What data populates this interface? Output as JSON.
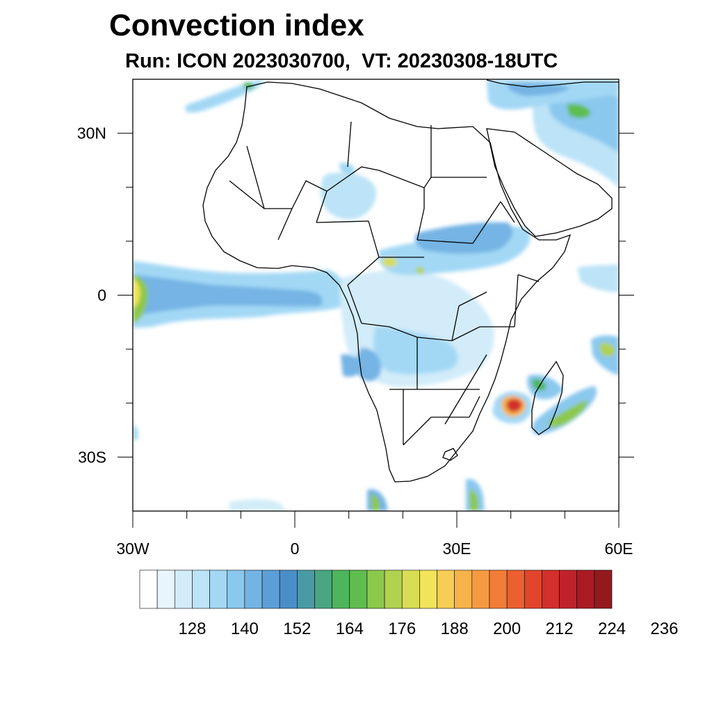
{
  "title": "Convection index",
  "subtitle": "Run: ICON 2023030700,  VT: 20230308-18UTC",
  "map": {
    "lon_range": [
      -30,
      60
    ],
    "lat_range": [
      -40,
      40
    ],
    "x_ticks": [
      {
        "value": -30,
        "label": "30W"
      },
      {
        "value": 0,
        "label": "0"
      },
      {
        "value": 30,
        "label": "30E"
      },
      {
        "value": 60,
        "label": "60E"
      }
    ],
    "y_ticks": [
      {
        "value": 30,
        "label": "30N"
      },
      {
        "value": 0,
        "label": "0"
      },
      {
        "value": -30,
        "label": "30S"
      }
    ]
  },
  "colorbar": {
    "colors": [
      "#ffffff",
      "#e9f5fc",
      "#d2ecf9",
      "#bce3f7",
      "#a3d8f5",
      "#8ac8ee",
      "#74b4e4",
      "#5c9fd6",
      "#4a8ec8",
      "#4a9aa6",
      "#49a680",
      "#4db55c",
      "#5fbd4e",
      "#8cc84b",
      "#b1d24f",
      "#d8dd54",
      "#f1e35a",
      "#f8cd55",
      "#f7b34a",
      "#f59a41",
      "#f27d37",
      "#ec5f30",
      "#e1452b",
      "#d32f2b",
      "#c0222a",
      "#aa1b24",
      "#921a1e"
    ],
    "labels": [
      "128",
      "140",
      "152",
      "164",
      "176",
      "188",
      "200",
      "212",
      "224",
      "236"
    ]
  }
}
